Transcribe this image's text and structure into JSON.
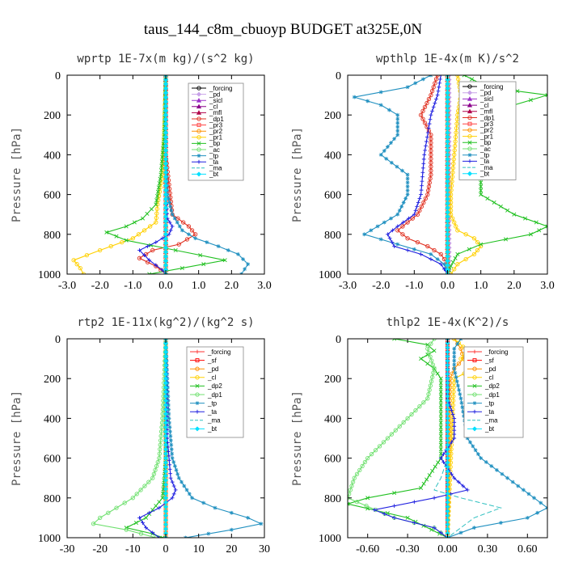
{
  "figure_title": "taus_144_c8m_cbuoyp  BUDGET at325E,0N",
  "chart_data": [
    {
      "type": "line",
      "title": "wprtp  1E-7x(m kg)/(s^2 kg)",
      "ylabel": "Pressure [hPa]",
      "xlim": [
        -3.0,
        3.0
      ],
      "ylim": [
        1000,
        0
      ],
      "xticks": [
        "-3.0",
        "-2.0",
        "-1.0",
        "0.0",
        "1.0",
        "2.0",
        "3.0"
      ],
      "yticks": [
        "0",
        "200",
        "400",
        "600",
        "800",
        "1000"
      ],
      "legend_position": "top-right",
      "series": [
        {
          "name": "_forcing",
          "color": "#000000",
          "marker": "circle",
          "p": [
            0,
            1000
          ],
          "x": [
            0,
            0
          ]
        },
        {
          "name": "_pd",
          "color": "#c8a2e8",
          "marker": "diamond",
          "p": [
            0,
            1000
          ],
          "x": [
            0,
            0
          ]
        },
        {
          "name": "_sicl",
          "color": "#9b30c8",
          "marker": "triangle",
          "p": [
            0,
            1000
          ],
          "x": [
            0,
            0
          ]
        },
        {
          "name": "_cl",
          "color": "#8b008b",
          "marker": "triangle",
          "p": [
            0,
            1000
          ],
          "x": [
            0,
            0
          ]
        },
        {
          "name": "_mfl",
          "color": "#b0004a",
          "marker": "triangle",
          "p": [
            0,
            1000
          ],
          "x": [
            0,
            0
          ]
        },
        {
          "name": "_dp1",
          "color": "#e03020",
          "marker": "circle",
          "p": [
            0,
            400,
            700,
            760,
            800,
            850,
            880,
            920,
            960,
            1000
          ],
          "x": [
            0,
            0,
            0.2,
            0.7,
            0.9,
            0.4,
            -0.4,
            -0.8,
            -0.3,
            0
          ]
        },
        {
          "name": "_pr3",
          "color": "#ff4040",
          "marker": "square",
          "p": [
            0,
            1000
          ],
          "x": [
            0,
            0
          ]
        },
        {
          "name": "_pr2",
          "color": "#ff9000",
          "marker": "circle",
          "p": [
            0,
            1000
          ],
          "x": [
            0,
            0
          ]
        },
        {
          "name": "_pr1",
          "color": "#ffd000",
          "marker": "circle",
          "p": [
            0,
            300,
            500,
            650,
            740,
            820,
            880,
            930,
            970,
            1000
          ],
          "x": [
            0,
            -0.05,
            -0.1,
            -0.25,
            -0.3,
            -1.0,
            -2.0,
            -2.8,
            -2.6,
            -2.5
          ]
        },
        {
          "name": "_bp",
          "color": "#20c020",
          "marker": "x",
          "p": [
            0,
            300,
            500,
            650,
            720,
            760,
            790,
            830,
            880,
            930,
            970,
            1000
          ],
          "x": [
            0,
            -0.05,
            -0.15,
            -0.3,
            -0.7,
            -1.2,
            -1.8,
            -1.2,
            0.3,
            1.8,
            0.5,
            -0.5
          ]
        },
        {
          "name": "_ac",
          "color": "#70e070",
          "marker": "circle",
          "p": [
            0,
            1000
          ],
          "x": [
            0,
            0
          ]
        },
        {
          "name": "_tp",
          "color": "#2090c0",
          "marker": "star",
          "p": [
            0,
            400,
            600,
            700,
            780,
            820,
            860,
            900,
            950,
            1000
          ],
          "x": [
            0,
            0,
            0.05,
            0.2,
            0.5,
            0.9,
            1.6,
            2.2,
            2.5,
            2.3
          ]
        },
        {
          "name": "_ta",
          "color": "#2020e0",
          "marker": "plus",
          "p": [
            0,
            600,
            720,
            760,
            800,
            840,
            880,
            930,
            980,
            1000
          ],
          "x": [
            0,
            0,
            0.05,
            0.2,
            0.1,
            -0.3,
            -0.8,
            -0.5,
            -0.1,
            0
          ]
        },
        {
          "name": "_ma",
          "color": "#30c0c0",
          "marker": "none",
          "p": [
            0,
            1000
          ],
          "x": [
            0,
            0
          ]
        },
        {
          "name": "_bt",
          "color": "#00e0ff",
          "marker": "diamond",
          "p": [
            0,
            1000
          ],
          "x": [
            0,
            0
          ]
        }
      ]
    },
    {
      "type": "line",
      "title": "wpthlp  1E-4x(m K)/s^2",
      "ylabel": "Pressure [hPa]",
      "xlim": [
        -3.0,
        3.0
      ],
      "ylim": [
        1000,
        0
      ],
      "xticks": [
        "-3.0",
        "-2.0",
        "-1.0",
        "0.0",
        "1.0",
        "2.0",
        "3.0"
      ],
      "yticks": [
        "0",
        "200",
        "400",
        "600",
        "800",
        "1000"
      ],
      "legend_position": "top-right",
      "series": [
        {
          "name": "_forcing",
          "color": "#000000",
          "marker": "circle",
          "p": [
            0,
            1000
          ],
          "x": [
            0,
            0
          ]
        },
        {
          "name": "_pd",
          "color": "#c8a2e8",
          "marker": "diamond",
          "p": [
            0,
            1000
          ],
          "x": [
            0.05,
            0.05
          ]
        },
        {
          "name": "_sicl",
          "color": "#9b30c8",
          "marker": "triangle",
          "p": [
            0,
            1000
          ],
          "x": [
            0,
            0
          ]
        },
        {
          "name": "_cl",
          "color": "#8b008b",
          "marker": "triangle",
          "p": [
            0,
            1000
          ],
          "x": [
            0,
            0
          ]
        },
        {
          "name": "_mfl",
          "color": "#b0004a",
          "marker": "triangle",
          "p": [
            0,
            1000
          ],
          "x": [
            0,
            0
          ]
        },
        {
          "name": "_dp1",
          "color": "#e03020",
          "marker": "circle",
          "p": [
            0,
            100,
            200,
            300,
            400,
            500,
            600,
            700,
            780,
            820,
            860,
            900,
            950,
            1000
          ],
          "x": [
            -0.3,
            -0.5,
            -0.8,
            -0.5,
            -0.5,
            -0.5,
            -0.6,
            -0.9,
            -1.5,
            -1.2,
            -0.6,
            -0.2,
            0,
            0
          ]
        },
        {
          "name": "_pr3",
          "color": "#ff4040",
          "marker": "square",
          "p": [
            0,
            1000
          ],
          "x": [
            0,
            0
          ]
        },
        {
          "name": "_pr2",
          "color": "#ff9000",
          "marker": "circle",
          "p": [
            0,
            1000
          ],
          "x": [
            0,
            0
          ]
        },
        {
          "name": "_pr1",
          "color": "#ffd000",
          "marker": "circle",
          "p": [
            0,
            100,
            200,
            400,
            600,
            700,
            780,
            820,
            860,
            900,
            950,
            1000
          ],
          "x": [
            0.3,
            0.4,
            0.3,
            0.2,
            0.1,
            0.1,
            0.3,
            0.8,
            1.0,
            0.8,
            0.3,
            0.1
          ]
        },
        {
          "name": "_bp",
          "color": "#20c020",
          "marker": "x",
          "p": [
            0,
            60,
            100,
            150,
            200,
            300,
            400,
            500,
            600,
            700,
            760,
            800,
            850,
            900,
            960,
            1000
          ],
          "x": [
            0.5,
            1.2,
            3.0,
            2.0,
            1.0,
            0.6,
            1.0,
            1.0,
            1.0,
            2.0,
            3.0,
            2.5,
            1.0,
            0.3,
            0.1,
            0
          ]
        },
        {
          "name": "_ac",
          "color": "#70e070",
          "marker": "circle",
          "p": [
            0,
            1000
          ],
          "x": [
            0,
            0
          ]
        },
        {
          "name": "_tp",
          "color": "#2090c0",
          "marker": "star",
          "p": [
            0,
            60,
            110,
            150,
            200,
            300,
            400,
            500,
            600,
            700,
            800,
            850,
            900,
            950,
            1000
          ],
          "x": [
            -0.5,
            -1.2,
            -2.8,
            -2.0,
            -1.5,
            -1.5,
            -2.0,
            -1.2,
            -1.2,
            -1.5,
            -2.5,
            -1.5,
            -0.5,
            -0.1,
            0
          ]
        },
        {
          "name": "_ta",
          "color": "#2020e0",
          "marker": "plus",
          "p": [
            0,
            100,
            200,
            400,
            600,
            700,
            760,
            800,
            860,
            900,
            950,
            1000
          ],
          "x": [
            -0.2,
            -0.3,
            -0.5,
            -0.7,
            -0.8,
            -1.0,
            -1.5,
            -1.8,
            -1.6,
            -0.8,
            -0.2,
            0
          ]
        },
        {
          "name": "_ma",
          "color": "#30c0c0",
          "marker": "none",
          "p": [
            0,
            1000
          ],
          "x": [
            0,
            0
          ]
        },
        {
          "name": "_bt",
          "color": "#00e0ff",
          "marker": "diamond",
          "p": [
            0,
            1000
          ],
          "x": [
            0,
            0
          ]
        }
      ]
    },
    {
      "type": "line",
      "title": "rtp2  1E-11x(kg^2)/(kg^2 s)",
      "ylabel": "Pressure [hPa]",
      "xlim": [
        -30,
        30
      ],
      "ylim": [
        1000,
        0
      ],
      "xticks": [
        "-30",
        "-20",
        "-10",
        "0",
        "10",
        "20",
        "30"
      ],
      "yticks": [
        "0",
        "200",
        "400",
        "600",
        "800",
        "1000"
      ],
      "legend_position": "top-right",
      "series": [
        {
          "name": "_forcing",
          "color": "#ff3030",
          "marker": "plus",
          "p": [
            0,
            1000
          ],
          "x": [
            0,
            0
          ]
        },
        {
          "name": "_sf",
          "color": "#ff0000",
          "marker": "square",
          "p": [
            0,
            1000
          ],
          "x": [
            0,
            0
          ]
        },
        {
          "name": "_pd",
          "color": "#ff9000",
          "marker": "circle",
          "p": [
            0,
            1000
          ],
          "x": [
            0,
            0
          ]
        },
        {
          "name": "_cl",
          "color": "#ffd000",
          "marker": "circle",
          "p": [
            0,
            1000
          ],
          "x": [
            0,
            0
          ]
        },
        {
          "name": "_dp2",
          "color": "#20c020",
          "marker": "x",
          "p": [
            0,
            600,
            800,
            900,
            950,
            980,
            1000
          ],
          "x": [
            0,
            0,
            -1,
            -6,
            -12,
            -4,
            -1
          ]
        },
        {
          "name": "_dp1",
          "color": "#70e070",
          "marker": "circle",
          "p": [
            0,
            200,
            400,
            600,
            700,
            800,
            850,
            900,
            930,
            960,
            1000
          ],
          "x": [
            0,
            -0.5,
            -1,
            -2,
            -4,
            -10,
            -15,
            -20,
            -22,
            -12,
            -3
          ]
        },
        {
          "name": "_tp",
          "color": "#2090c0",
          "marker": "star",
          "p": [
            0,
            400,
            600,
            700,
            800,
            850,
            900,
            930,
            960,
            1000
          ],
          "x": [
            0,
            1,
            2,
            4,
            8,
            15,
            25,
            29,
            20,
            6
          ]
        },
        {
          "name": "_ta",
          "color": "#2020e0",
          "marker": "plus",
          "p": [
            0,
            500,
            700,
            760,
            800,
            850,
            900,
            950,
            1000
          ],
          "x": [
            0,
            0.5,
            1.5,
            3,
            2,
            -2,
            -8,
            -6,
            -2
          ]
        },
        {
          "name": "_ma",
          "color": "#30c0c0",
          "marker": "none",
          "p": [
            0,
            1000
          ],
          "x": [
            0,
            0
          ]
        },
        {
          "name": "_bt",
          "color": "#00e0ff",
          "marker": "diamond",
          "p": [
            0,
            1000
          ],
          "x": [
            0,
            0
          ]
        }
      ]
    },
    {
      "type": "line",
      "title": "thlp2  1E-4x(K^2)/s",
      "ylabel": "Pressure [hPa]",
      "xlim": [
        -0.75,
        0.75
      ],
      "ylim": [
        1000,
        0
      ],
      "xticks": [
        "-0.60",
        "-0.30",
        "0.00",
        "0.30",
        "0.60"
      ],
      "xtick_values": [
        -0.6,
        -0.3,
        0.0,
        0.3,
        0.6
      ],
      "yticks": [
        "0",
        "200",
        "400",
        "600",
        "800",
        "1000"
      ],
      "legend_position": "top-right",
      "series": [
        {
          "name": "_forcing",
          "color": "#ff3030",
          "marker": "plus",
          "p": [
            0,
            1000
          ],
          "x": [
            0,
            0
          ]
        },
        {
          "name": "_sf",
          "color": "#ff0000",
          "marker": "square",
          "p": [
            0,
            1000
          ],
          "x": [
            0,
            0
          ]
        },
        {
          "name": "_pd",
          "color": "#ff9000",
          "marker": "circle",
          "p": [
            0,
            50,
            100,
            150,
            200,
            1000
          ],
          "x": [
            0.05,
            0.1,
            0.12,
            0.05,
            0.02,
            0
          ]
        },
        {
          "name": "_cl",
          "color": "#ffd000",
          "marker": "circle",
          "p": [
            0,
            60,
            100,
            150,
            200,
            1000
          ],
          "x": [
            0.05,
            0.15,
            0.1,
            0.2,
            0.05,
            0
          ]
        },
        {
          "name": "_dp2",
          "color": "#20c020",
          "marker": "x",
          "p": [
            0,
            30,
            60,
            100,
            150,
            200,
            400,
            600,
            750,
            800,
            830,
            900,
            1000
          ],
          "x": [
            -0.4,
            -0.15,
            -0.1,
            -0.2,
            -0.1,
            -0.05,
            -0.05,
            -0.05,
            -0.2,
            -0.6,
            -0.75,
            -0.3,
            0
          ]
        },
        {
          "name": "_dp1",
          "color": "#70e070",
          "marker": "circle",
          "p": [
            0,
            50,
            150,
            300,
            400,
            500,
            600,
            700,
            800,
            900,
            950,
            1000
          ],
          "x": [
            -0.1,
            -0.15,
            -0.1,
            -0.15,
            -0.3,
            -0.45,
            -0.6,
            -0.7,
            -0.75,
            -0.4,
            -0.1,
            0
          ]
        },
        {
          "name": "_tp",
          "color": "#2090c0",
          "marker": "star",
          "p": [
            0,
            50,
            150,
            300,
            500,
            600,
            700,
            800,
            850,
            900,
            950,
            1000
          ],
          "x": [
            0.1,
            0.05,
            0.05,
            0.1,
            0.15,
            0.25,
            0.45,
            0.65,
            0.75,
            0.6,
            0.2,
            0
          ]
        },
        {
          "name": "_ta",
          "color": "#2020e0",
          "marker": "plus",
          "p": [
            0,
            300,
            400,
            500,
            600,
            700,
            760,
            800,
            860,
            900,
            950,
            1000
          ],
          "x": [
            0,
            0,
            0.05,
            0.05,
            -0.05,
            0.05,
            0.15,
            -0.1,
            -0.55,
            -0.4,
            -0.1,
            0
          ]
        },
        {
          "name": "_ma",
          "color": "#30c0c0",
          "marker": "none",
          "p": [
            0,
            600,
            700,
            760,
            800,
            850,
            900,
            1000
          ],
          "x": [
            0,
            0,
            -0.05,
            -0.1,
            0.1,
            0.4,
            0.2,
            0
          ]
        },
        {
          "name": "_bt",
          "color": "#00e0ff",
          "marker": "diamond",
          "p": [
            0,
            1000
          ],
          "x": [
            0,
            0
          ]
        }
      ]
    }
  ]
}
